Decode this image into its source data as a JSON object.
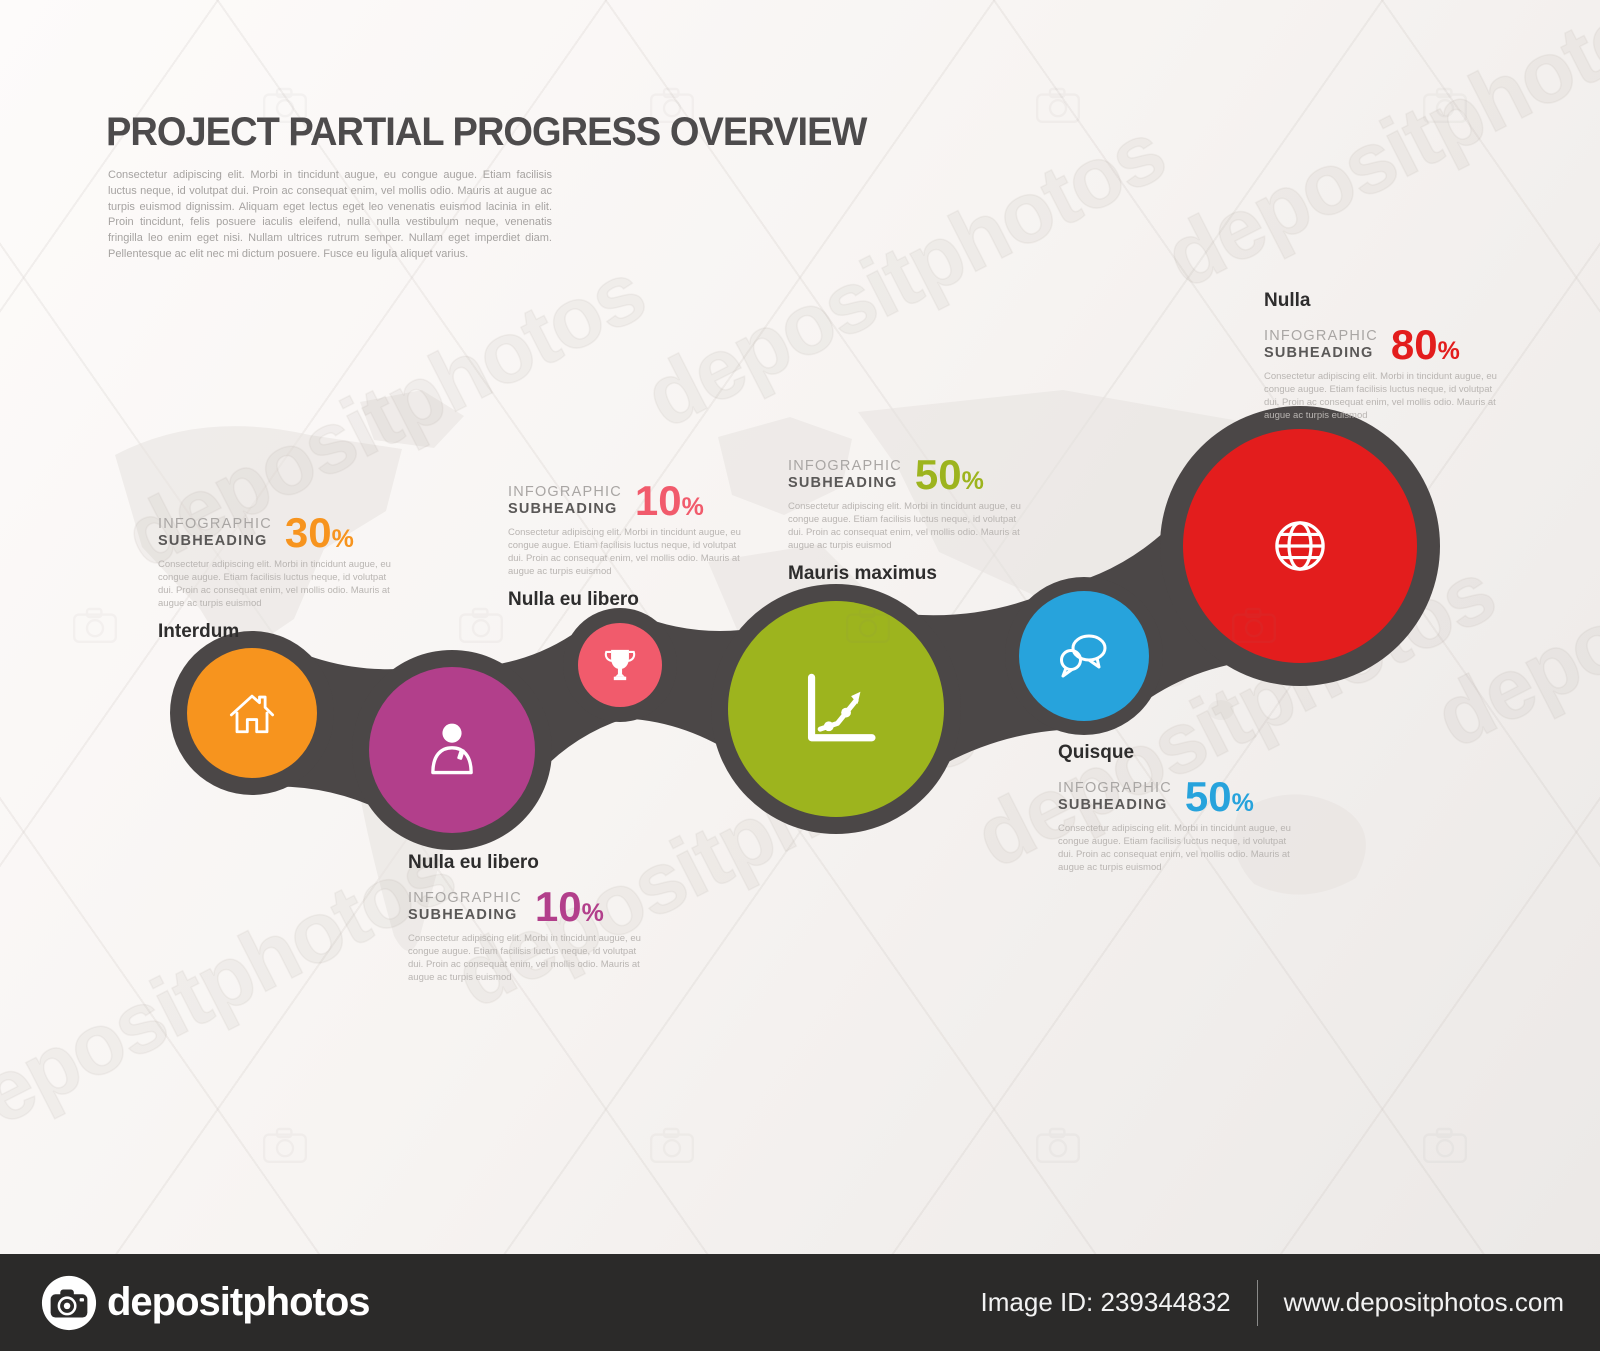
{
  "header": {
    "title": "PROJECT PARTIAL PROGRESS OVERVIEW",
    "intro": "Consectetur adipiscing elit. Morbi in tincidunt augue, eu congue augue. Etiam facilisis luctus neque, id volutpat dui. Proin ac consequat enim, vel mollis odio. Mauris at augue ac turpis euismod dignissim. Aliquam eget lectus eget leo venenatis euismod lacinia in elit. Proin tincidunt, felis posuere iaculis eleifend, nulla nulla vestibulum neque, venenatis fringilla leo enim eget nisi. Nullam ultrices rutrum semper. Nullam eget imperdiet diam. Pellentesque ac elit nec mi dictum posuere. Fusce eu ligula aliquet varius."
  },
  "labels": {
    "subheading_line1": "INFOGRAPHIC",
    "subheading_line2": "SUBHEADING"
  },
  "card_body": "Consectetur adipiscing elit. Morbi in tincidunt augue, eu congue augue. Etiam facilisis luctus neque, id volutpat dui. Proin ac consequat enim, vel mollis odio. Mauris at augue ac turpis euismod",
  "milestones": [
    {
      "name": "Interdum",
      "percent_value": "30",
      "percent_sign": "%",
      "accent": "#f7941e",
      "icon": "home-icon"
    },
    {
      "name": "Nulla eu libero",
      "percent_value": "10",
      "percent_sign": "%",
      "accent": "#b23f8b",
      "icon": "person-icon"
    },
    {
      "name": "Nulla eu libero",
      "percent_value": "10",
      "percent_sign": "%",
      "accent": "#f15b6c",
      "icon": "trophy-icon"
    },
    {
      "name": "Mauris maximus",
      "percent_value": "50",
      "percent_sign": "%",
      "accent": "#9db41e",
      "icon": "line-chart-icon"
    },
    {
      "name": "Quisque",
      "percent_value": "50",
      "percent_sign": "%",
      "accent": "#27a3dc",
      "icon": "chat-bubbles-icon"
    },
    {
      "name": "Nulla",
      "percent_value": "80",
      "percent_sign": "%",
      "accent": "#e31d1d",
      "icon": "globe-icon"
    }
  ],
  "chain_color": "#4b4747",
  "watermark": {
    "text": "depositphotos"
  },
  "footer": {
    "brand": "depositphotos",
    "image_id": "Image ID: 239344832",
    "website": "www.depositphotos.com"
  }
}
